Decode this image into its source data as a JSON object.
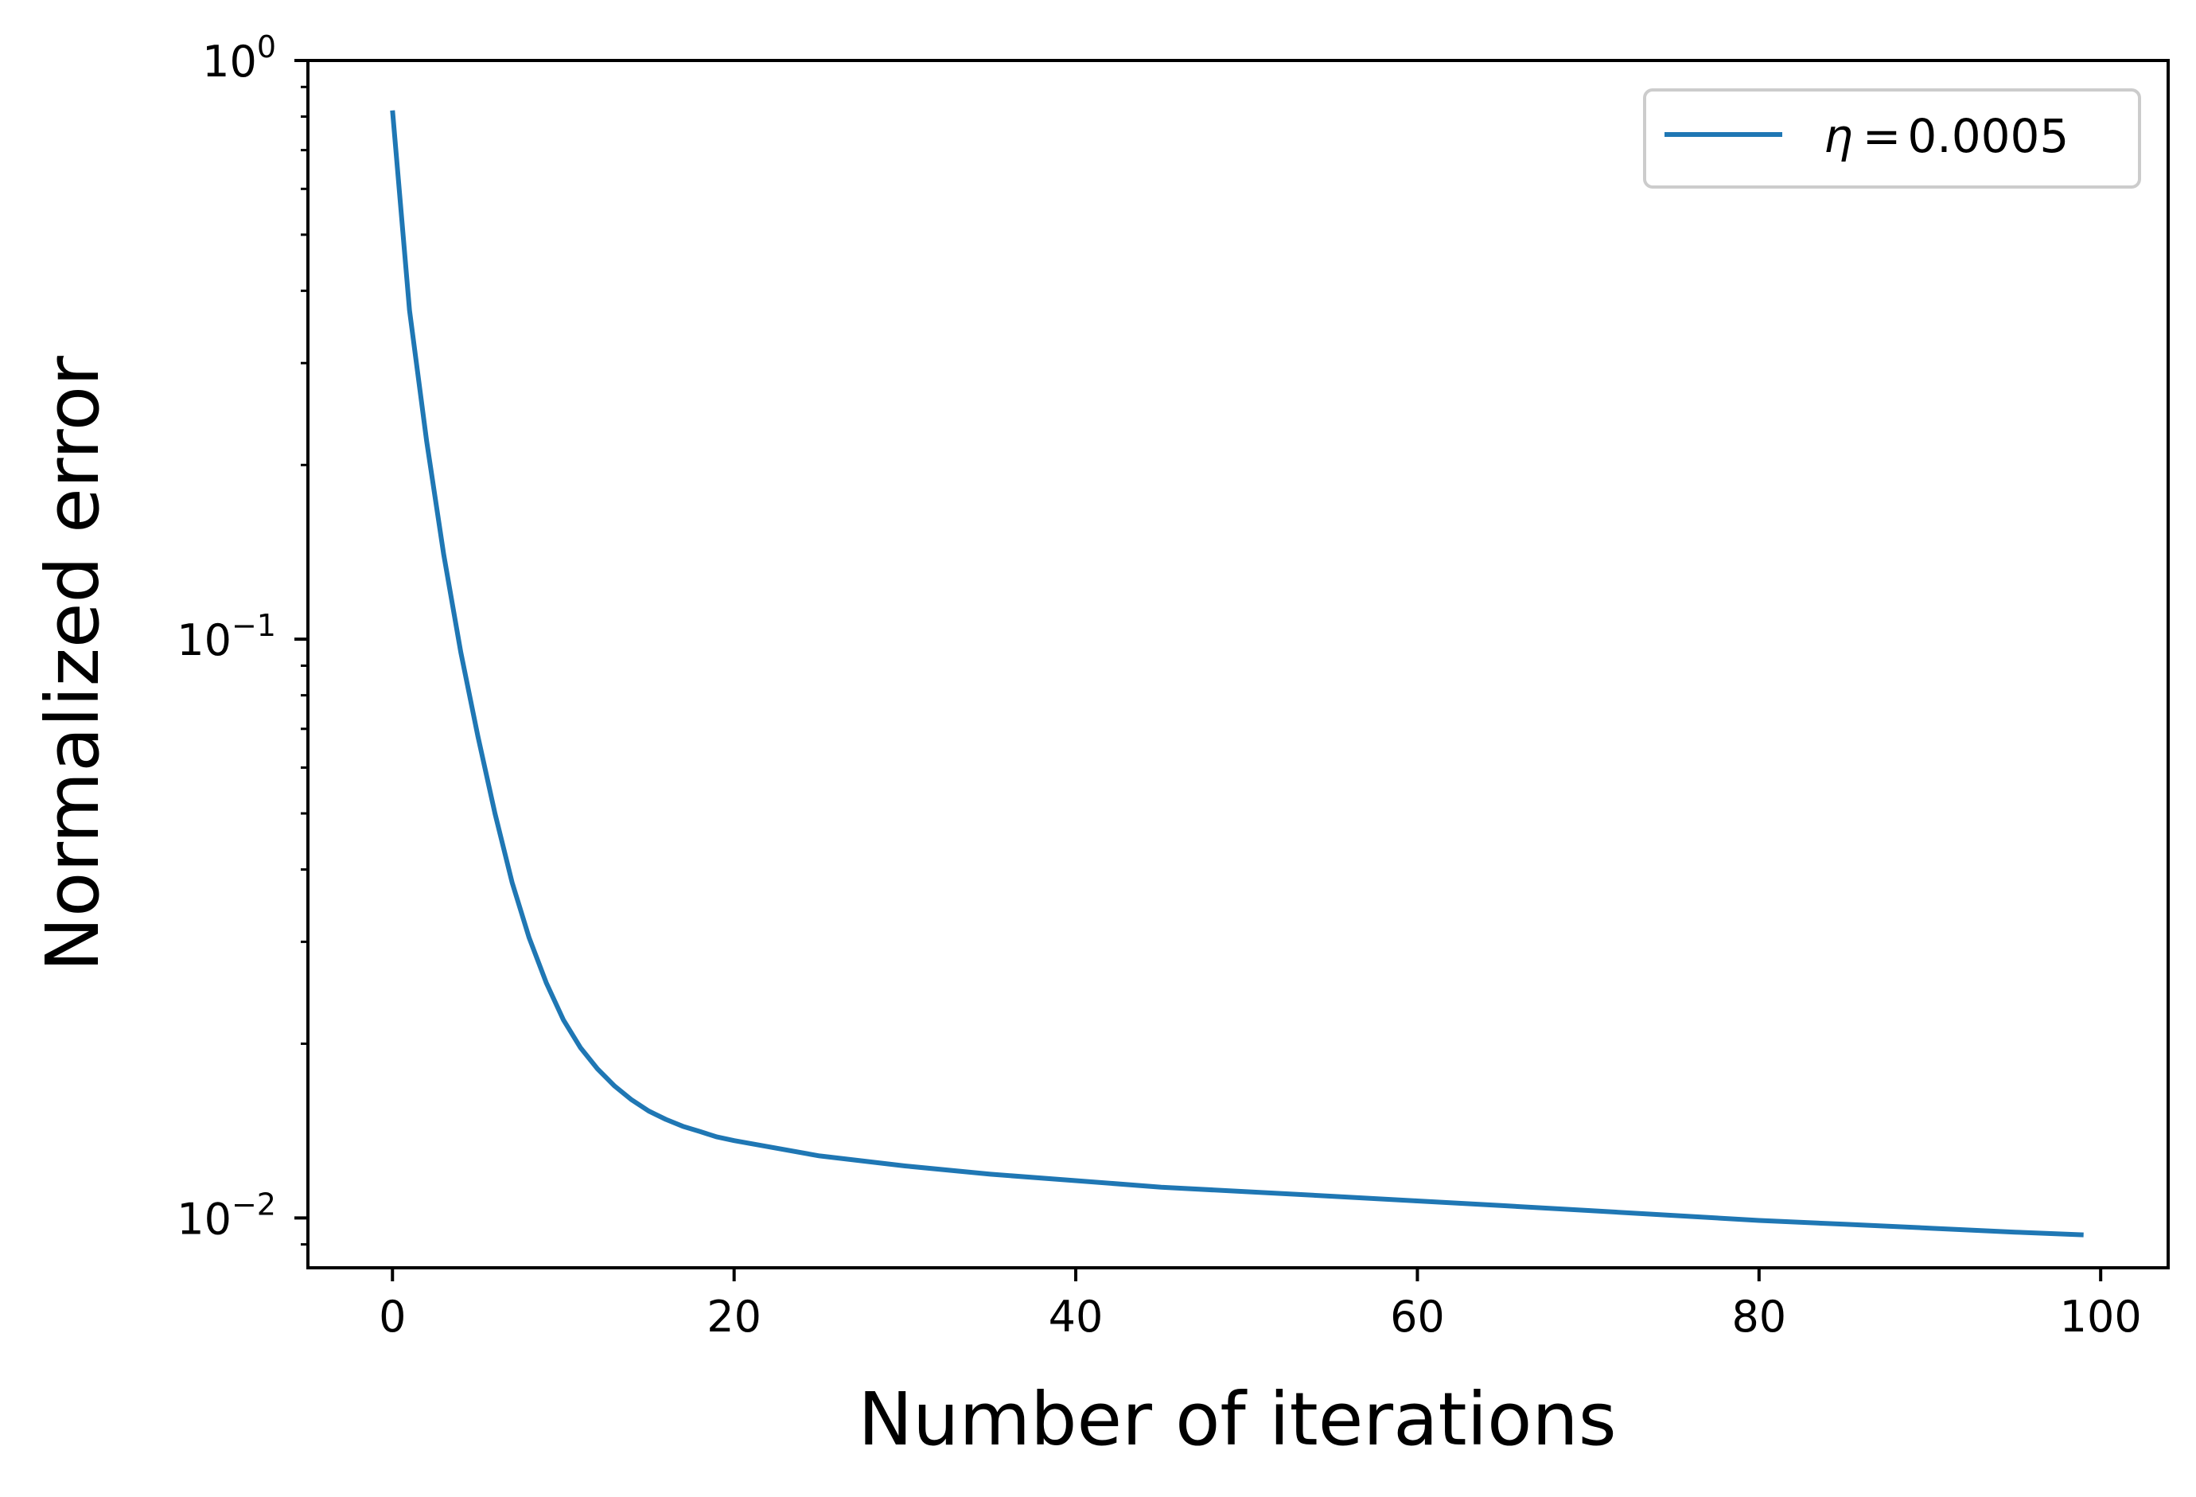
{
  "chart_data": {
    "type": "line",
    "xlabel": "Number of iterations",
    "ylabel": "Normalized error",
    "xlim": [
      -4.95,
      103.95
    ],
    "ylim": [
      0.0082,
      1.0
    ],
    "yscale": "log",
    "grid": false,
    "legend_position": "top-right",
    "x_ticks": [
      0,
      20,
      40,
      60,
      80,
      100
    ],
    "x_tick_labels": [
      "0",
      "20",
      "40",
      "60",
      "80",
      "100"
    ],
    "y_ticks": [
      {
        "value": 1.0,
        "base": "10",
        "exp": "0"
      },
      {
        "value": 0.1,
        "base": "10",
        "exp": "−1"
      },
      {
        "value": 0.01,
        "base": "10",
        "exp": "−2"
      }
    ],
    "series": [
      {
        "name": "η = 0.0005",
        "legend_symbol": "η",
        "legend_value": "0.0005",
        "color": "#1f77b4",
        "points": [
          [
            0,
            0.82
          ],
          [
            1,
            0.37
          ],
          [
            2,
            0.22
          ],
          [
            3,
            0.14
          ],
          [
            4,
            0.095
          ],
          [
            5,
            0.068
          ],
          [
            6,
            0.05
          ],
          [
            7,
            0.038
          ],
          [
            8,
            0.0305
          ],
          [
            9,
            0.0255
          ],
          [
            10,
            0.022
          ],
          [
            11,
            0.0197
          ],
          [
            12,
            0.0181
          ],
          [
            13,
            0.0169
          ],
          [
            14,
            0.016
          ],
          [
            15,
            0.0153
          ],
          [
            16,
            0.0148
          ],
          [
            17,
            0.0144
          ],
          [
            18,
            0.0141
          ],
          [
            19,
            0.0138
          ],
          [
            20,
            0.0136
          ],
          [
            25,
            0.0128
          ],
          [
            30,
            0.0123
          ],
          [
            35,
            0.0119
          ],
          [
            40,
            0.0116
          ],
          [
            45,
            0.0113
          ],
          [
            50,
            0.0111
          ],
          [
            55,
            0.0109
          ],
          [
            60,
            0.0107
          ],
          [
            65,
            0.0105
          ],
          [
            70,
            0.0103
          ],
          [
            75,
            0.0101
          ],
          [
            80,
            0.0099
          ],
          [
            85,
            0.00975
          ],
          [
            90,
            0.0096
          ],
          [
            95,
            0.00945
          ],
          [
            99,
            0.00935
          ]
        ]
      }
    ]
  }
}
